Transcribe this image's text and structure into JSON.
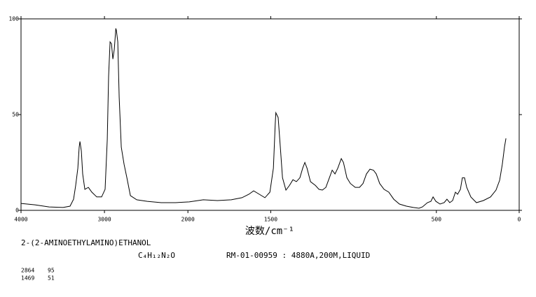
{
  "chart_data": {
    "type": "line",
    "compound": "2-(2-AMINOETHYLAMINO)ETHANOL",
    "formula": "C₄H₁₂N₂O",
    "reference": "RM-01-00959 : 4880A,200M,LIQUID",
    "xlabel": "波数/cm⁻¹",
    "xlim": [
      4000,
      0
    ],
    "xbreak": 2000,
    "ylim": [
      0,
      100
    ],
    "xticks": [
      4000,
      3000,
      2000,
      1500,
      500,
      0
    ],
    "yticks": [
      0,
      50,
      100
    ],
    "peaks": [
      [
        2864,
        95
      ],
      [
        1469,
        51
      ]
    ],
    "series": [
      {
        "color": "#000000",
        "x": [
          4000,
          3832,
          3664,
          3496,
          3412,
          3370,
          3345,
          3319,
          3303,
          3294,
          3277,
          3261,
          3235,
          3193,
          3151,
          3092,
          3034,
          2992,
          2966,
          2950,
          2933,
          2916,
          2899,
          2882,
          2864,
          2857,
          2840,
          2824,
          2798,
          2765,
          2731,
          2689,
          2613,
          2487,
          2319,
          2151,
          1992,
          1907,
          1822,
          1738,
          1674,
          1632,
          1603,
          1569,
          1535,
          1505,
          1484,
          1473,
          1469,
          1455,
          1442,
          1429,
          1408,
          1387,
          1366,
          1345,
          1324,
          1307,
          1294,
          1281,
          1260,
          1230,
          1209,
          1188,
          1167,
          1146,
          1129,
          1112,
          1095,
          1074,
          1061,
          1040,
          1019,
          990,
          964,
          943,
          922,
          901,
          880,
          863,
          842,
          816,
          787,
          757,
          723,
          681,
          639,
          605,
          584,
          554,
          533,
          520,
          503,
          478,
          453,
          436,
          419,
          402,
          385,
          372,
          355,
          343,
          330,
          317,
          292,
          258,
          216,
          173,
          140,
          118,
          102,
          89,
          80
        ],
        "values": [
          3.6,
          2.9,
          1.8,
          1.5,
          2.2,
          5.8,
          13,
          22,
          33,
          36,
          31,
          19,
          11,
          12,
          9.5,
          7,
          7,
          11,
          37,
          70,
          88,
          87,
          79,
          84,
          95,
          94,
          88,
          59,
          33,
          24,
          17,
          7.7,
          5.5,
          4.7,
          4,
          4,
          4.4,
          5.5,
          5.1,
          5.5,
          6.6,
          8.4,
          10.2,
          8.4,
          6.6,
          9.5,
          22,
          45,
          51,
          48.5,
          33,
          17,
          10.6,
          13,
          16,
          15,
          17,
          22,
          25,
          22,
          15,
          13,
          11,
          10.6,
          12,
          17,
          21,
          19,
          22,
          27,
          25,
          17,
          14,
          12,
          12,
          14,
          19,
          21.5,
          21,
          19,
          14,
          11,
          9.5,
          5.8,
          3.3,
          2.2,
          1.5,
          1.1,
          1.8,
          4,
          4.7,
          7,
          4.7,
          3.3,
          4,
          5.8,
          4,
          5.1,
          9.5,
          8.4,
          11,
          17,
          17,
          12,
          7,
          4,
          5.1,
          7,
          10.6,
          15.7,
          24,
          33,
          37.6
        ]
      }
    ]
  }
}
